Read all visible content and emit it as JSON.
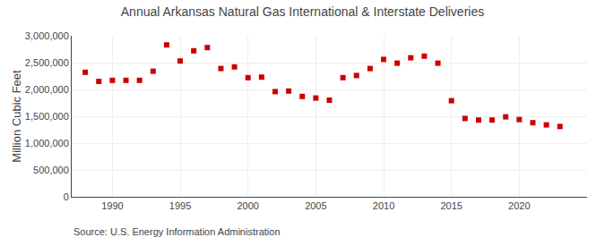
{
  "chart_data": {
    "type": "scatter",
    "title": "Annual Arkansas Natural Gas International & Interstate Deliveries",
    "ylabel": "Million Cubic Feet",
    "annotations": [
      "Source: U.S. Energy Information Administration"
    ],
    "x": [
      1988,
      1989,
      1990,
      1991,
      1992,
      1993,
      1994,
      1995,
      1996,
      1997,
      1998,
      1999,
      2000,
      2001,
      2002,
      2003,
      2004,
      2005,
      2006,
      2007,
      2008,
      2009,
      2010,
      2011,
      2012,
      2013,
      2014,
      2015,
      2016,
      2017,
      2018,
      2019,
      2020,
      2021,
      2022,
      2023
    ],
    "values": [
      2320000,
      2150000,
      2170000,
      2170000,
      2170000,
      2340000,
      2830000,
      2530000,
      2720000,
      2780000,
      2390000,
      2420000,
      2220000,
      2230000,
      1960000,
      1970000,
      1870000,
      1840000,
      1800000,
      2220000,
      2260000,
      2390000,
      2560000,
      2490000,
      2590000,
      2620000,
      2490000,
      1790000,
      1460000,
      1430000,
      1430000,
      1490000,
      1440000,
      1380000,
      1340000,
      1310000
    ],
    "color": "#cc0000",
    "marker": "square",
    "xlim": [
      1987,
      2025
    ],
    "xticks": [
      1990,
      1995,
      2000,
      2005,
      2010,
      2015,
      2020
    ],
    "ylim": [
      0,
      3000000
    ],
    "yticks": [
      0,
      {
        "value": 500000,
        "label": "500,000"
      },
      {
        "value": 1000000,
        "label": "1,000,000"
      },
      {
        "value": 1500000,
        "label": "1,500,000"
      },
      {
        "value": 2000000,
        "label": "2,000,000"
      },
      {
        "value": 2500000,
        "label": "2,500,000"
      },
      {
        "value": 3000000,
        "label": "3,000,000"
      }
    ],
    "grid": true
  }
}
